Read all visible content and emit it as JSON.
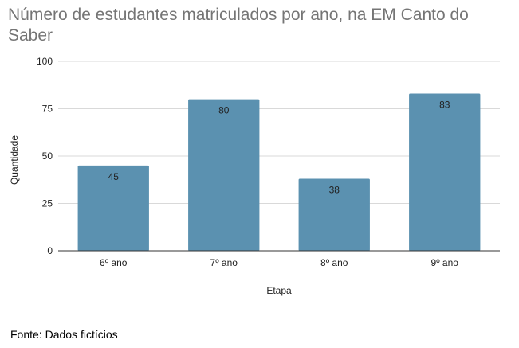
{
  "chart_data": {
    "type": "bar",
    "title": "Número de estudantes matriculados por ano, na EM Canto do Saber",
    "categories": [
      "6º ano",
      "7º ano",
      "8º ano",
      "9º ano"
    ],
    "values": [
      45,
      80,
      38,
      83
    ],
    "xlabel": "Etapa",
    "ylabel": "Quantidade",
    "ylim": [
      0,
      100
    ],
    "yticks": [
      0,
      25,
      50,
      75,
      100
    ],
    "grid": true,
    "legend": "none",
    "bar_color": "#5b91b0"
  },
  "footer": {
    "source": "Fonte: Dados fictícios"
  }
}
